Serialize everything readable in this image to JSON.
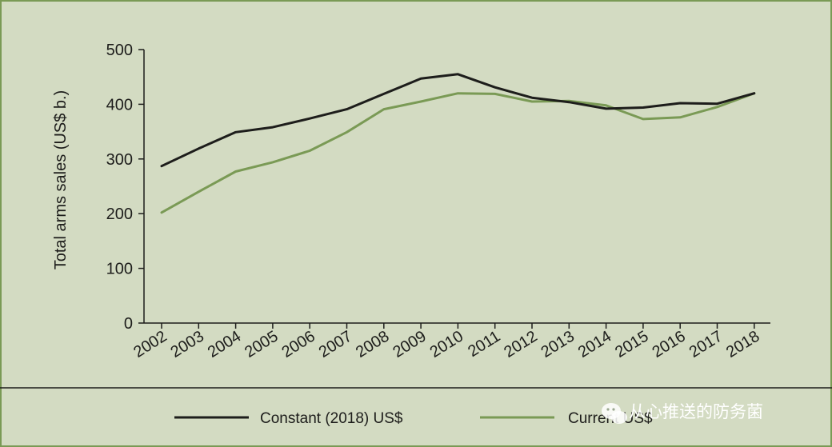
{
  "chart_data": {
    "type": "line",
    "ylabel": "Total arms sales (US$ b.)",
    "xlabel": "",
    "ylim": [
      0,
      500
    ],
    "yticks": [
      0,
      100,
      200,
      300,
      400,
      500
    ],
    "x": [
      "2002",
      "2003",
      "2004",
      "2005",
      "2006",
      "2007",
      "2008",
      "2009",
      "2010",
      "2011",
      "2012",
      "2013",
      "2014",
      "2015",
      "2016",
      "2017",
      "2018"
    ],
    "series": [
      {
        "name": "Constant (2018) US$",
        "color": "#1d1d1b",
        "values": [
          287,
          319,
          349,
          358,
          374,
          391,
          419,
          447,
          455,
          431,
          412,
          404,
          392,
          394,
          402,
          401,
          420
        ]
      },
      {
        "name": "Current US$",
        "color": "#7a9a55",
        "values": [
          202,
          240,
          277,
          294,
          315,
          349,
          391,
          405,
          420,
          419,
          405,
          406,
          398,
          373,
          376,
          395,
          420
        ]
      }
    ],
    "grid": false,
    "legend": "bottom"
  },
  "watermark": {
    "text": "从心推送的防务菌",
    "icon": "wechat-icon"
  }
}
